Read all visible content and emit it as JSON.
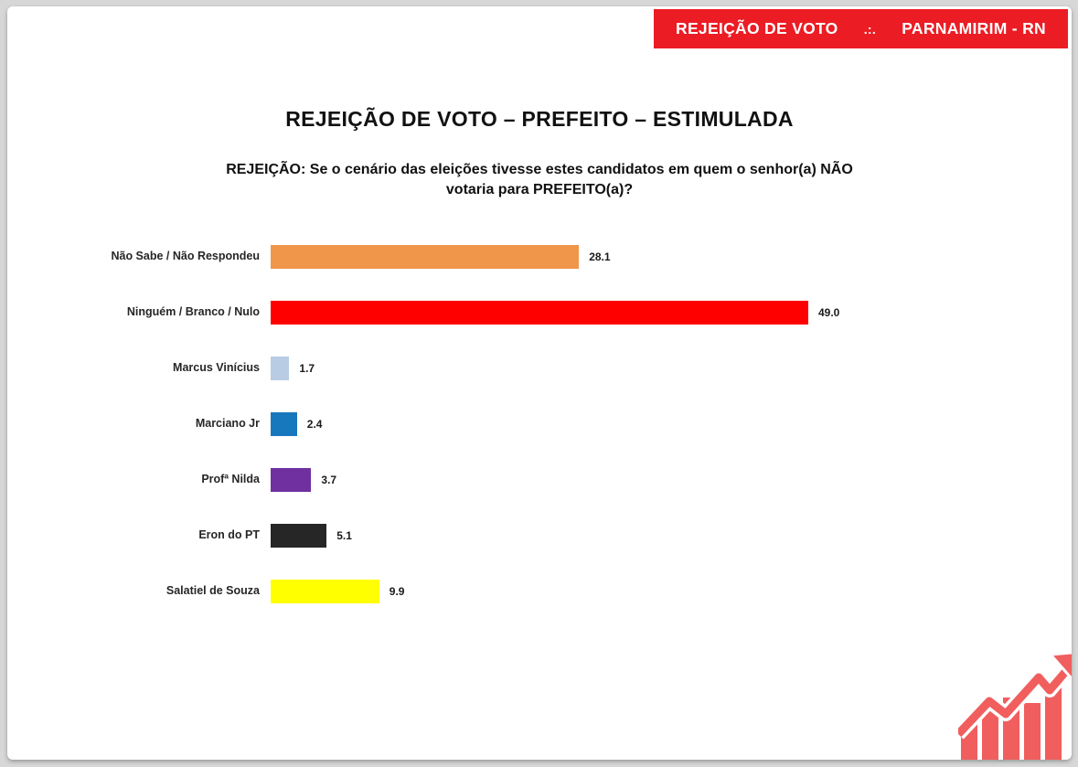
{
  "banner": {
    "left": "REJEIÇÃO DE VOTO",
    "separator": ".:.",
    "right": "PARNAMIRIM - RN",
    "bg_color": "#ec1c24",
    "text_color": "#ffffff"
  },
  "title": "REJEIÇÃO DE VOTO – PREFEITO – ESTIMULADA",
  "subtitle": "REJEIÇÃO: Se o cenário das eleições tivesse estes candidatos em quem o senhor(a) NÃO votaria para PREFEITO(a)?",
  "chart_data": {
    "type": "bar",
    "orientation": "horizontal",
    "categories": [
      "Não Sabe / Não Respondeu",
      "Ninguém / Branco / Nulo",
      "Marcus Vinícius",
      "Marciano Jr",
      "Profª Nilda",
      "Eron do PT",
      "Salatiel de Souza"
    ],
    "values": [
      28.1,
      49.0,
      1.7,
      2.4,
      3.7,
      5.1,
      9.9
    ],
    "value_labels": [
      "28.1",
      "49.0",
      "1.7",
      "2.4",
      "3.7",
      "5.1",
      "9.9"
    ],
    "colors": [
      "#f0964b",
      "#ff0000",
      "#b8cce4",
      "#1878be",
      "#7030a0",
      "#262626",
      "#ffff00"
    ],
    "xlim": [
      0,
      50
    ],
    "data_labels": true,
    "grid": false,
    "legend": false,
    "title": "REJEIÇÃO DE VOTO – PREFEITO – ESTIMULADA"
  },
  "logo": {
    "name": "growth-chart-arrow-logo",
    "color": "#f15e5e"
  }
}
